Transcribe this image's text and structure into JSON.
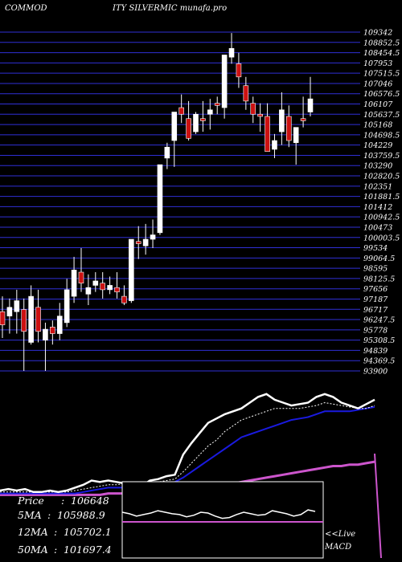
{
  "header": {
    "left": "COMMOD",
    "right": "ITY SILVERMIC munafa.pro"
  },
  "colors": {
    "background": "#000000",
    "grid": "#2f2fd6",
    "bull": "#ffffff",
    "bear": "#cc1111",
    "macd_line": "#ffffff",
    "signal": "#ffffff",
    "ma_blue": "#1a1adf",
    "ma_magenta": "#cc55cc"
  },
  "chart_data": [
    {
      "type": "candlestick",
      "y_axis_ticks": [
        "109342",
        "108852.5",
        "108454.5",
        "107953",
        "107515.5",
        "107046",
        "106576.5",
        "106107",
        "105637.5",
        "105168",
        "104698.5",
        "104229",
        "103759.5",
        "103290",
        "102820.5",
        "102351",
        "101881.5",
        "101412",
        "100942.5",
        "100473",
        "100003.5",
        "99534",
        "99064.5",
        "98595",
        "98125.5",
        "97656",
        "97187",
        "96717",
        "96247.5",
        "95778",
        "95308.5",
        "94839",
        "94369.5",
        "93900"
      ],
      "ylim": [
        93900,
        109342
      ],
      "candles": [
        {
          "o": 96600,
          "h": 97300,
          "l": 95400,
          "c": 96000
        },
        {
          "o": 96400,
          "h": 97200,
          "l": 95600,
          "c": 96800
        },
        {
          "o": 96600,
          "h": 97600,
          "l": 95600,
          "c": 97100
        },
        {
          "o": 96700,
          "h": 97200,
          "l": 93900,
          "c": 95700
        },
        {
          "o": 95200,
          "h": 97800,
          "l": 95100,
          "c": 97300
        },
        {
          "o": 96800,
          "h": 97600,
          "l": 95200,
          "c": 95700
        },
        {
          "o": 95300,
          "h": 96100,
          "l": 93900,
          "c": 95800
        },
        {
          "o": 95900,
          "h": 96200,
          "l": 95100,
          "c": 95600
        },
        {
          "o": 95600,
          "h": 97000,
          "l": 95300,
          "c": 96400
        },
        {
          "o": 96100,
          "h": 98100,
          "l": 95900,
          "c": 97600
        },
        {
          "o": 97300,
          "h": 99100,
          "l": 97000,
          "c": 98500
        },
        {
          "o": 98400,
          "h": 99500,
          "l": 97500,
          "c": 97900
        },
        {
          "o": 97400,
          "h": 98300,
          "l": 96900,
          "c": 97700
        },
        {
          "o": 97800,
          "h": 98400,
          "l": 97500,
          "c": 98000
        },
        {
          "o": 97900,
          "h": 98400,
          "l": 97200,
          "c": 97600
        },
        {
          "o": 97600,
          "h": 98200,
          "l": 97400,
          "c": 97800
        },
        {
          "o": 97700,
          "h": 98400,
          "l": 97200,
          "c": 97500
        },
        {
          "o": 97300,
          "h": 97800,
          "l": 96900,
          "c": 97000
        },
        {
          "o": 97100,
          "h": 99900,
          "l": 97000,
          "c": 99900
        },
        {
          "o": 99800,
          "h": 100500,
          "l": 99000,
          "c": 99700
        },
        {
          "o": 99600,
          "h": 100600,
          "l": 99200,
          "c": 99900
        },
        {
          "o": 99900,
          "h": 100800,
          "l": 99500,
          "c": 100100
        },
        {
          "o": 100200,
          "h": 103300,
          "l": 100100,
          "c": 103300
        },
        {
          "o": 103600,
          "h": 104300,
          "l": 103100,
          "c": 104100
        },
        {
          "o": 104400,
          "h": 105600,
          "l": 103200,
          "c": 105700
        },
        {
          "o": 105900,
          "h": 106500,
          "l": 105200,
          "c": 105600
        },
        {
          "o": 105400,
          "h": 106200,
          "l": 104400,
          "c": 104500
        },
        {
          "o": 104800,
          "h": 105700,
          "l": 104700,
          "c": 105600
        },
        {
          "o": 105400,
          "h": 106200,
          "l": 104800,
          "c": 105300
        },
        {
          "o": 105600,
          "h": 106300,
          "l": 104900,
          "c": 105800
        },
        {
          "o": 106100,
          "h": 106400,
          "l": 105600,
          "c": 106000
        },
        {
          "o": 105900,
          "h": 108300,
          "l": 105400,
          "c": 108300
        },
        {
          "o": 108200,
          "h": 109300,
          "l": 107900,
          "c": 108600
        },
        {
          "o": 107900,
          "h": 108400,
          "l": 106800,
          "c": 107300
        },
        {
          "o": 106900,
          "h": 107300,
          "l": 105800,
          "c": 106200
        },
        {
          "o": 106100,
          "h": 106400,
          "l": 105200,
          "c": 105600
        },
        {
          "o": 105600,
          "h": 106100,
          "l": 104800,
          "c": 105500
        },
        {
          "o": 105500,
          "h": 106100,
          "l": 104000,
          "c": 103900
        },
        {
          "o": 104000,
          "h": 104700,
          "l": 103600,
          "c": 104400
        },
        {
          "o": 104800,
          "h": 106600,
          "l": 104200,
          "c": 105800
        },
        {
          "o": 105500,
          "h": 106000,
          "l": 104100,
          "c": 104400
        },
        {
          "o": 104300,
          "h": 104900,
          "l": 103300,
          "c": 105000
        },
        {
          "o": 105400,
          "h": 106400,
          "l": 105000,
          "c": 105300
        },
        {
          "o": 105700,
          "h": 107300,
          "l": 105500,
          "c": 106300
        }
      ]
    },
    {
      "type": "line",
      "macd_line": [
        5,
        6,
        5,
        6,
        4,
        4,
        5,
        4,
        5,
        7,
        9,
        12,
        11,
        12,
        11,
        10,
        9,
        8,
        12,
        13,
        15,
        16,
        30,
        38,
        45,
        52,
        55,
        58,
        60,
        62,
        66,
        70,
        72,
        68,
        66,
        64,
        65,
        66,
        70,
        72,
        70,
        66,
        64,
        62,
        65,
        68
      ],
      "signal_line": [
        4,
        4,
        4,
        4,
        4,
        4,
        4,
        4,
        4,
        5,
        6,
        7,
        8,
        9,
        9,
        10,
        10,
        9,
        10,
        11,
        12,
        13,
        18,
        24,
        30,
        36,
        40,
        46,
        50,
        54,
        56,
        58,
        60,
        62,
        62,
        62,
        62,
        63,
        64,
        66,
        65,
        64,
        63,
        62,
        62,
        64
      ],
      "ma_blue": [
        3,
        3,
        3,
        3,
        3,
        3,
        3,
        3,
        3,
        3,
        4,
        5,
        6,
        7,
        7,
        7,
        7,
        7,
        8,
        9,
        10,
        11,
        14,
        18,
        22,
        26,
        30,
        34,
        38,
        42,
        44,
        46,
        48,
        50,
        52,
        54,
        55,
        56,
        58,
        60,
        60,
        60,
        60,
        61,
        62,
        63
      ],
      "ma_magenta": [
        2,
        2,
        2,
        2,
        2,
        2,
        2,
        2,
        2,
        2,
        2,
        2,
        2,
        3,
        3,
        3,
        3,
        3,
        3,
        3,
        4,
        4,
        4,
        5,
        6,
        7,
        8,
        9,
        10,
        11,
        12,
        13,
        14,
        15,
        16,
        17,
        18,
        19,
        20,
        21,
        22,
        22,
        23,
        23,
        24,
        25
      ]
    },
    {
      "type": "line",
      "series": [
        60,
        58,
        55,
        57,
        59,
        62,
        60,
        58,
        57,
        54,
        56,
        60,
        59,
        55,
        52,
        53,
        57,
        60,
        58,
        56,
        57,
        62,
        60,
        58,
        55,
        57,
        63,
        61
      ]
    }
  ],
  "stats": [
    {
      "label": "Price",
      "value": "106648"
    },
    {
      "label": "5MA",
      "value": "105988.9"
    },
    {
      "label": "12MA",
      "value": "105702.1"
    },
    {
      "label": "50MA",
      "value": "101697.4"
    }
  ],
  "macd_label": {
    "line1": "<<Live",
    "line2": "MACD"
  }
}
